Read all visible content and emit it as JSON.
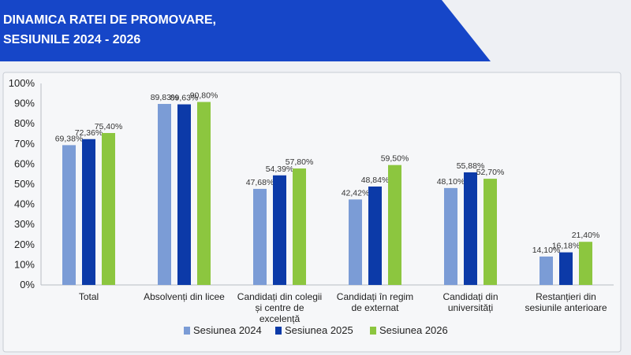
{
  "title_line1": "DINAMICA RATEI DE PROMOVARE,",
  "title_line2": "SESIUNILE 2024 - 2026",
  "colors": {
    "banner": "#1646c8",
    "background": "#eef0f4",
    "plot_background": "#f6f7f9",
    "axis": "#b8bcc4"
  },
  "chart_data": {
    "type": "bar",
    "title": "DINAMICA RATEI DE PROMOVARE, SESIUNILE 2024 - 2026",
    "ylim": [
      0,
      100
    ],
    "yticks": [
      "0%",
      "10%",
      "20%",
      "30%",
      "40%",
      "50%",
      "60%",
      "70%",
      "80%",
      "90%",
      "100%"
    ],
    "grid": false,
    "legend_position": "bottom",
    "categories": [
      [
        "Total"
      ],
      [
        "Absolvenți din licee"
      ],
      [
        "Candidați din colegii",
        "și centre de",
        "excelență"
      ],
      [
        "Candidați în regim",
        "de externat"
      ],
      [
        "Candidați din",
        "universități"
      ],
      [
        "Restanțieri din",
        "sesiunile anterioare"
      ]
    ],
    "series": [
      {
        "name": "Sesiunea 2024",
        "color": "#7b9cd6",
        "values": [
          69.38,
          89.83,
          47.68,
          42.42,
          48.1,
          14.1
        ],
        "labels": [
          "69,38%",
          "89,83%",
          "47,68%",
          "42,42%",
          "48,10%",
          "14,10%"
        ]
      },
      {
        "name": "Sesiunea 2025",
        "color": "#0c3aa8",
        "values": [
          72.36,
          89.63,
          54.39,
          48.84,
          55.88,
          16.18
        ],
        "labels": [
          "72,36%",
          "89,63%",
          "54,39%",
          "48,84%",
          "55,88%",
          "16,18%"
        ]
      },
      {
        "name": "Sesiunea 2026",
        "color": "#8cc63f",
        "values": [
          75.4,
          90.8,
          57.8,
          59.5,
          52.7,
          21.4
        ],
        "labels": [
          "75,40%",
          "90,80%",
          "57,80%",
          "59,50%",
          "52,70%",
          "21,40%"
        ]
      }
    ]
  }
}
